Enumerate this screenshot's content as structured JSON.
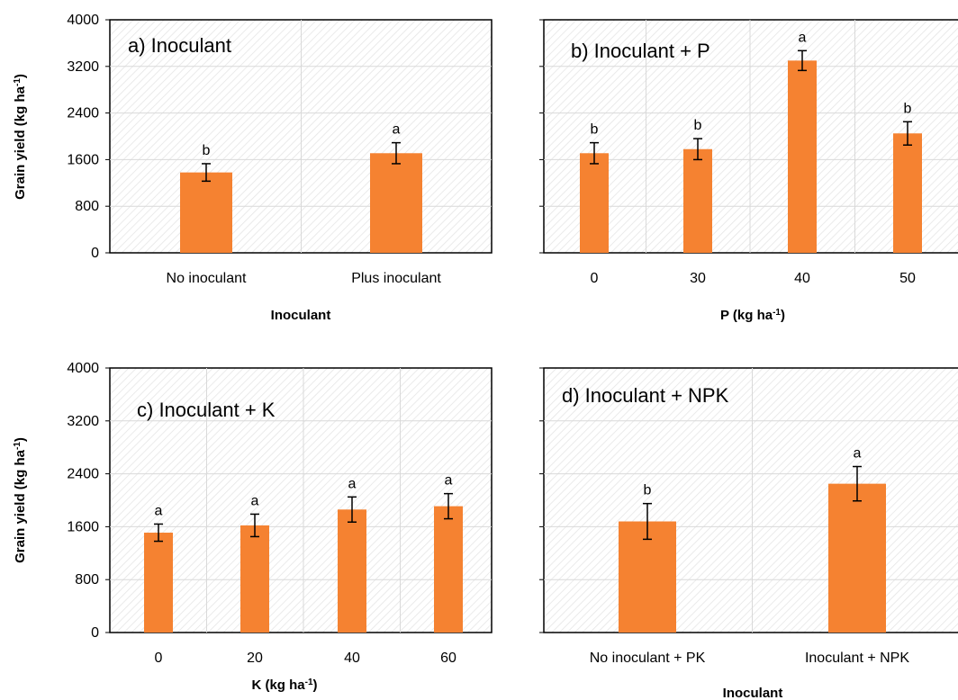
{
  "chart_data": [
    {
      "type": "bar",
      "title": "a) Inoculant",
      "categories": [
        "No inoculant",
        "Plus inoculant"
      ],
      "values": [
        1380,
        1710
      ],
      "errors": [
        150,
        180
      ],
      "letters": [
        "b",
        "a"
      ],
      "xlabel": "Inoculant",
      "ylabel": "Grain yield (kg ha-1)",
      "ylim": [
        0,
        4000
      ],
      "yticks": [
        "0",
        "800",
        "1600",
        "2400",
        "3200",
        "4000"
      ],
      "grid": true,
      "color": "#f58231"
    },
    {
      "type": "bar",
      "title": "b) Inoculant + P",
      "categories": [
        "0",
        "30",
        "40",
        "50"
      ],
      "values": [
        1710,
        1780,
        3300,
        2050
      ],
      "errors": [
        180,
        180,
        170,
        200
      ],
      "letters": [
        "b",
        "b",
        "a",
        "b"
      ],
      "xlabel": "P (kg ha-1)",
      "ylabel": "",
      "ylim": [
        0,
        4000
      ],
      "yticks": [],
      "grid": true,
      "color": "#f58231"
    },
    {
      "type": "bar",
      "title": "c) Inoculant + K",
      "categories": [
        "0",
        "20",
        "40",
        "60"
      ],
      "values": [
        1510,
        1620,
        1860,
        1910
      ],
      "errors": [
        130,
        170,
        190,
        190
      ],
      "letters": [
        "a",
        "a",
        "a",
        "a"
      ],
      "xlabel": "K (kg ha-1)",
      "ylabel": "Grain yield (kg ha-1)",
      "ylim": [
        0,
        4000
      ],
      "yticks": [
        "0",
        "800",
        "1600",
        "2400",
        "3200",
        "4000"
      ],
      "grid": true,
      "color": "#f58231"
    },
    {
      "type": "bar",
      "title": "d) Inoculant + NPK",
      "categories": [
        "No inoculant + PK",
        "Inoculant + NPK"
      ],
      "values": [
        1680,
        2250
      ],
      "errors": [
        270,
        260
      ],
      "letters": [
        "b",
        "a"
      ],
      "xlabel": "Inoculant",
      "ylabel": "",
      "ylim": [
        0,
        4000
      ],
      "yticks": [],
      "grid": true,
      "color": "#f58231"
    }
  ]
}
